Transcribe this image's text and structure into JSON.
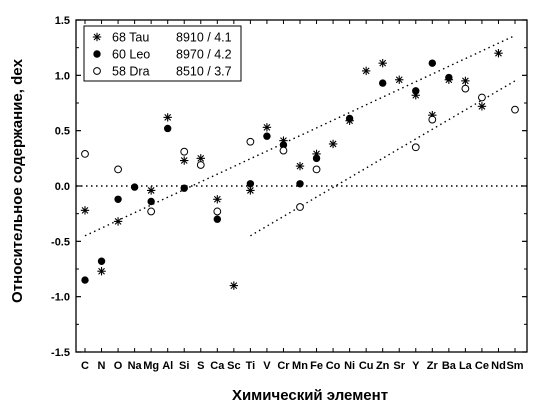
{
  "chart_data": {
    "type": "scatter",
    "xlabel": "Химический элемент",
    "ylabel": "Относительное содержание, dex",
    "ylim": [
      -1.5,
      1.5
    ],
    "yticks": [
      -1.5,
      -1.0,
      -0.5,
      0.0,
      0.5,
      1.0,
      1.5
    ],
    "ytick_labels": [
      "-1.5",
      "-1.0",
      "-0.5",
      "0.0",
      "0.5",
      "1.0",
      "1.5"
    ],
    "categories": [
      "C",
      "N",
      "O",
      "Na",
      "Mg",
      "Al",
      "Si",
      "S",
      "Ca",
      "Sc",
      "Ti",
      "V",
      "Cr",
      "Mn",
      "Fe",
      "Co",
      "Ni",
      "Cu",
      "Zn",
      "Sr",
      "Y",
      "Zr",
      "Ba",
      "La",
      "Ce",
      "Nd",
      "Sm"
    ],
    "legend_position": "top-left",
    "series": [
      {
        "name": "68 Tau",
        "label": "8910 / 4.1",
        "marker": "asterisk",
        "points": [
          {
            "x": "C",
            "y": -0.22
          },
          {
            "x": "N",
            "y": -0.77
          },
          {
            "x": "O",
            "y": -0.32
          },
          {
            "x": "Mg",
            "y": -0.04
          },
          {
            "x": "Al",
            "y": 0.62
          },
          {
            "x": "Si",
            "y": 0.23
          },
          {
            "x": "S",
            "y": 0.25
          },
          {
            "x": "Ca",
            "y": -0.12
          },
          {
            "x": "Sc",
            "y": -0.9
          },
          {
            "x": "Ti",
            "y": -0.04
          },
          {
            "x": "V",
            "y": 0.53
          },
          {
            "x": "Cr",
            "y": 0.41
          },
          {
            "x": "Mn",
            "y": 0.18
          },
          {
            "x": "Fe",
            "y": 0.29
          },
          {
            "x": "Co",
            "y": 0.38
          },
          {
            "x": "Ni",
            "y": 0.59
          },
          {
            "x": "Cu",
            "y": 1.04
          },
          {
            "x": "Zn",
            "y": 1.11
          },
          {
            "x": "Sr",
            "y": 0.96
          },
          {
            "x": "Y",
            "y": 0.82
          },
          {
            "x": "Zr",
            "y": 0.64
          },
          {
            "x": "Ba",
            "y": 0.96
          },
          {
            "x": "La",
            "y": 0.95
          },
          {
            "x": "Ce",
            "y": 0.72
          },
          {
            "x": "Nd",
            "y": 1.2
          }
        ]
      },
      {
        "name": "60 Leo",
        "label": "8970 / 4.2",
        "marker": "filled-circle",
        "points": [
          {
            "x": "C",
            "y": -0.85
          },
          {
            "x": "N",
            "y": -0.68
          },
          {
            "x": "O",
            "y": -0.12
          },
          {
            "x": "Na",
            "y": -0.01
          },
          {
            "x": "Mg",
            "y": -0.14
          },
          {
            "x": "Al",
            "y": 0.52
          },
          {
            "x": "Si",
            "y": -0.02
          },
          {
            "x": "Ca",
            "y": -0.3
          },
          {
            "x": "Ti",
            "y": 0.02
          },
          {
            "x": "V",
            "y": 0.45
          },
          {
            "x": "Cr",
            "y": 0.37
          },
          {
            "x": "Mn",
            "y": 0.02
          },
          {
            "x": "Fe",
            "y": 0.25
          },
          {
            "x": "Ni",
            "y": 0.61
          },
          {
            "x": "Zn",
            "y": 0.93
          },
          {
            "x": "Y",
            "y": 0.86
          },
          {
            "x": "Zr",
            "y": 1.11
          },
          {
            "x": "Ba",
            "y": 0.98
          }
        ]
      },
      {
        "name": "58 Dra",
        "label": "8510 / 3.7",
        "marker": "open-circle",
        "points": [
          {
            "x": "C",
            "y": 0.29
          },
          {
            "x": "O",
            "y": 0.15
          },
          {
            "x": "Mg",
            "y": -0.23
          },
          {
            "x": "Si",
            "y": 0.31
          },
          {
            "x": "S",
            "y": 0.19
          },
          {
            "x": "Ca",
            "y": -0.23
          },
          {
            "x": "Ti",
            "y": 0.4
          },
          {
            "x": "Cr",
            "y": 0.32
          },
          {
            "x": "Mn",
            "y": -0.19
          },
          {
            "x": "Fe",
            "y": 0.15
          },
          {
            "x": "Y",
            "y": 0.35
          },
          {
            "x": "Zr",
            "y": 0.6
          },
          {
            "x": "La",
            "y": 0.88
          },
          {
            "x": "Ce",
            "y": 0.8
          },
          {
            "x": "Sm",
            "y": 0.69
          }
        ]
      }
    ],
    "reference_lines": [
      {
        "type": "horizontal",
        "y": 0.0,
        "style": "dotted"
      },
      {
        "type": "trend",
        "from": {
          "x": "C",
          "y": -0.45
        },
        "to": {
          "x": "Sm",
          "y": 1.36
        },
        "style": "dotted"
      },
      {
        "type": "trend",
        "from": {
          "x": "Ti",
          "y": -0.45
        },
        "to": {
          "x": "Sm",
          "y": 0.95
        },
        "style": "dotted"
      }
    ]
  }
}
